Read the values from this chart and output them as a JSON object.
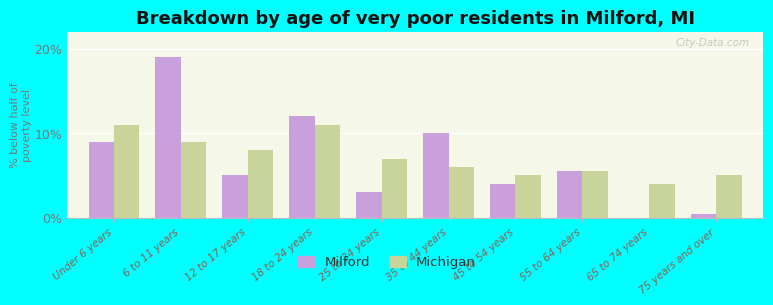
{
  "title": "Breakdown by age of very poor residents in Milford, MI",
  "categories": [
    "Under 6 years",
    "6 to 11 years",
    "12 to 17 years",
    "18 to 24 years",
    "25 to 34 years",
    "35 to 44 years",
    "45 to 54 years",
    "55 to 64 years",
    "65 to 74 years",
    "75 years and over"
  ],
  "milford_values": [
    9.0,
    19.0,
    5.0,
    12.0,
    3.0,
    10.0,
    4.0,
    5.5,
    0.0,
    0.5
  ],
  "michigan_values": [
    11.0,
    9.0,
    8.0,
    11.0,
    7.0,
    6.0,
    5.0,
    5.5,
    4.0,
    5.0
  ],
  "milford_color": "#c9a0dc",
  "michigan_color": "#c8d49a",
  "background_outer": "#00ffff",
  "background_inner": "#f5f8e8",
  "ylabel": "% below half of\npoverty level",
  "ylim": [
    0,
    22
  ],
  "yticks": [
    0,
    10,
    20
  ],
  "ytick_labels": [
    "0%",
    "10%",
    "20%"
  ],
  "title_fontsize": 13,
  "legend_milford": "Milford",
  "legend_michigan": "Michigan",
  "bar_width": 0.38,
  "watermark": "City-Data.com"
}
